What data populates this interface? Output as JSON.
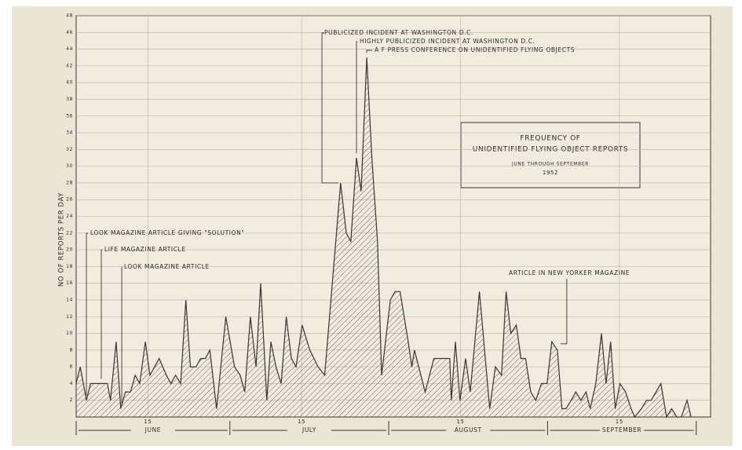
{
  "chart_data": {
    "type": "area",
    "title": [
      "FREQUENCY OF",
      "UNIDENTIFIED FLYING OBJECT REPORTS"
    ],
    "subtitle": "JUNE THROUGH SEPTEMBER",
    "date": "1952",
    "y_label": "NO OF REPORTS PER DAY",
    "color": "#3a3530",
    "x": [
      1,
      1.8,
      3,
      3.8,
      7.1,
      7.7,
      8.8,
      9.7,
      10.6,
      11.6,
      12.5,
      13.4,
      14.5,
      15.4,
      17.2,
      18.6,
      19.5,
      20.4,
      21.4,
      22.4,
      23.3,
      24.4,
      25.3,
      26.2,
      27.1,
      28.4,
      30.2,
      31.9,
      33,
      33.9,
      35,
      36.1,
      37,
      38.2,
      39,
      40,
      41,
      42,
      43,
      43.9,
      45.1,
      46.6,
      48.2,
      49.5,
      52.6,
      53.7,
      54.6,
      55.7,
      56.6,
      57.7,
      58.7,
      59.8,
      60.6,
      62.3,
      63.2,
      64.2,
      65.8,
      66.5,
      67,
      69.1,
      70.8,
      72.7,
      73.9,
      74.2,
      75,
      75.9,
      77,
      77.9,
      79.7,
      81.7,
      82.8,
      84,
      84.9,
      85.8,
      86.9,
      87.8,
      88.7,
      89.7,
      90.7,
      91.8,
      92.9,
      93.8,
      94.9,
      95.8,
      96.6,
      97.6,
      98.5,
      99.5,
      100.5,
      101.3,
      102.4,
      103.5,
      104.4,
      105.3,
      106.2,
      107.1,
      108.2,
      109.3,
      110,
      111.3,
      112.3,
      113.2,
      115.1,
      116.2,
      117.2,
      118.2,
      119.1,
      120.2,
      121
    ],
    "values": [
      4,
      6,
      2,
      4,
      4,
      2,
      9,
      1,
      3,
      3,
      5,
      4,
      9,
      5,
      7,
      5,
      4,
      5,
      4,
      14,
      6,
      6,
      7,
      7,
      8,
      1,
      12,
      6,
      5,
      3,
      12,
      6,
      16,
      2,
      9,
      6,
      4,
      12,
      7,
      6,
      11,
      8,
      6,
      5,
      28,
      22,
      21,
      31,
      27,
      43,
      31,
      21,
      5,
      14,
      15,
      15,
      9,
      6,
      8,
      3,
      7,
      7,
      7,
      2,
      9,
      2,
      7,
      3,
      15,
      1,
      6,
      5,
      15,
      10,
      11,
      7,
      7,
      3,
      2,
      4,
      4,
      9,
      8,
      1,
      1,
      2,
      3,
      2,
      3,
      1,
      4,
      10,
      4,
      9,
      1,
      4,
      3,
      1,
      0,
      1,
      2,
      2,
      4,
      0,
      1,
      0,
      0,
      2,
      0
    ],
    "xlim": [
      1,
      124.8
    ],
    "xticks": [
      {
        "value": 15,
        "label": "15"
      },
      {
        "value": 45,
        "label": "15"
      },
      {
        "value": 76,
        "label": "15"
      },
      {
        "value": 107,
        "label": "15"
      }
    ],
    "month_ticks": [
      1,
      31,
      62,
      93,
      122
    ],
    "months": [
      "JUNE",
      "JULY",
      "AUGUST",
      "SEPTEMBER"
    ],
    "ylim": [
      0,
      48
    ],
    "yticks": [
      2,
      4,
      6,
      8,
      10,
      12,
      14,
      16,
      18,
      20,
      22,
      24,
      26,
      28,
      30,
      32,
      34,
      36,
      38,
      40,
      42,
      44,
      46,
      48
    ],
    "grid": true,
    "annotations": [
      {
        "text": "LOOK MAGAZINE ARTICLE GIVING \"SOLUTION\"",
        "day": 3,
        "value": 2
      },
      {
        "text": "LIFE MAGAZINE ARTICLE",
        "day": 5.9,
        "value": 4
      },
      {
        "text": "LOOK MAGAZINE ARTICLE",
        "day": 9.9,
        "value": 1
      },
      {
        "text": "PUBLICIZED INCIDENT AT WASHINGTON D.C.",
        "day": 52.6,
        "value": 28
      },
      {
        "text": "HIGHLY PUBLICIZED INCIDENT AT WASHINGTON D.C.",
        "day": 55.7,
        "value": 31
      },
      {
        "text": "A F PRESS CONFERENCE ON UNIDENTIFIED FLYING OBJECTS",
        "day": 57.7,
        "value": 43
      },
      {
        "text": "ARTICLE IN NEW YORKER MAGAZINE",
        "day": 94.9,
        "value": 8
      }
    ]
  }
}
